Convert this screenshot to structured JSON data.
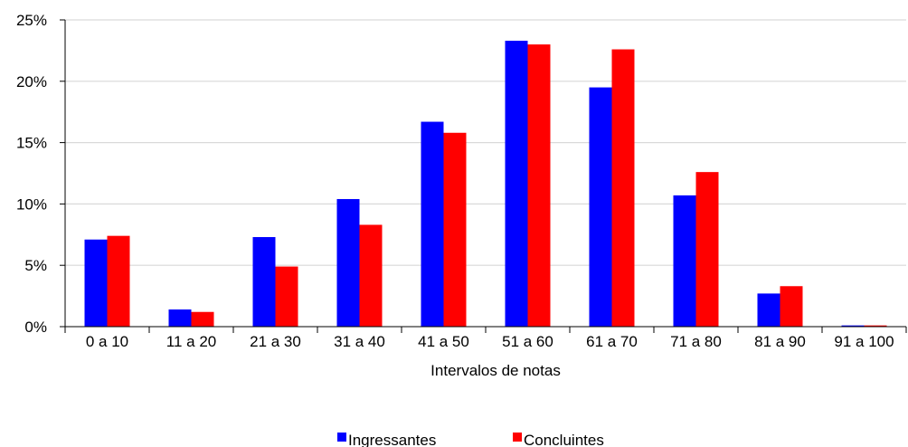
{
  "chart_data": {
    "type": "bar",
    "title": "",
    "xlabel": "Intervalos de notas",
    "ylabel": "",
    "categories": [
      "0 a 10",
      "11 a 20",
      "21 a 30",
      "31 a 40",
      "41 a 50",
      "51 a 60",
      "61 a 70",
      "71 a 80",
      "81 a 90",
      "91 a 100"
    ],
    "series": [
      {
        "name": "Ingressantes",
        "color": "#0000FF",
        "values": [
          7.1,
          1.4,
          7.3,
          10.4,
          16.7,
          23.3,
          19.5,
          10.7,
          2.7,
          0.1
        ]
      },
      {
        "name": "Concluintes",
        "color": "#FF0000",
        "values": [
          7.4,
          1.2,
          4.9,
          8.3,
          15.8,
          23.0,
          22.6,
          12.6,
          3.3,
          0.1
        ]
      }
    ],
    "ylim": [
      0,
      25
    ],
    "yticks": [
      0,
      5,
      10,
      15,
      20,
      25
    ],
    "ytick_labels": [
      "0%",
      "5%",
      "10%",
      "15%",
      "20%",
      "25%"
    ],
    "grid": true,
    "legend_position": "bottom"
  }
}
